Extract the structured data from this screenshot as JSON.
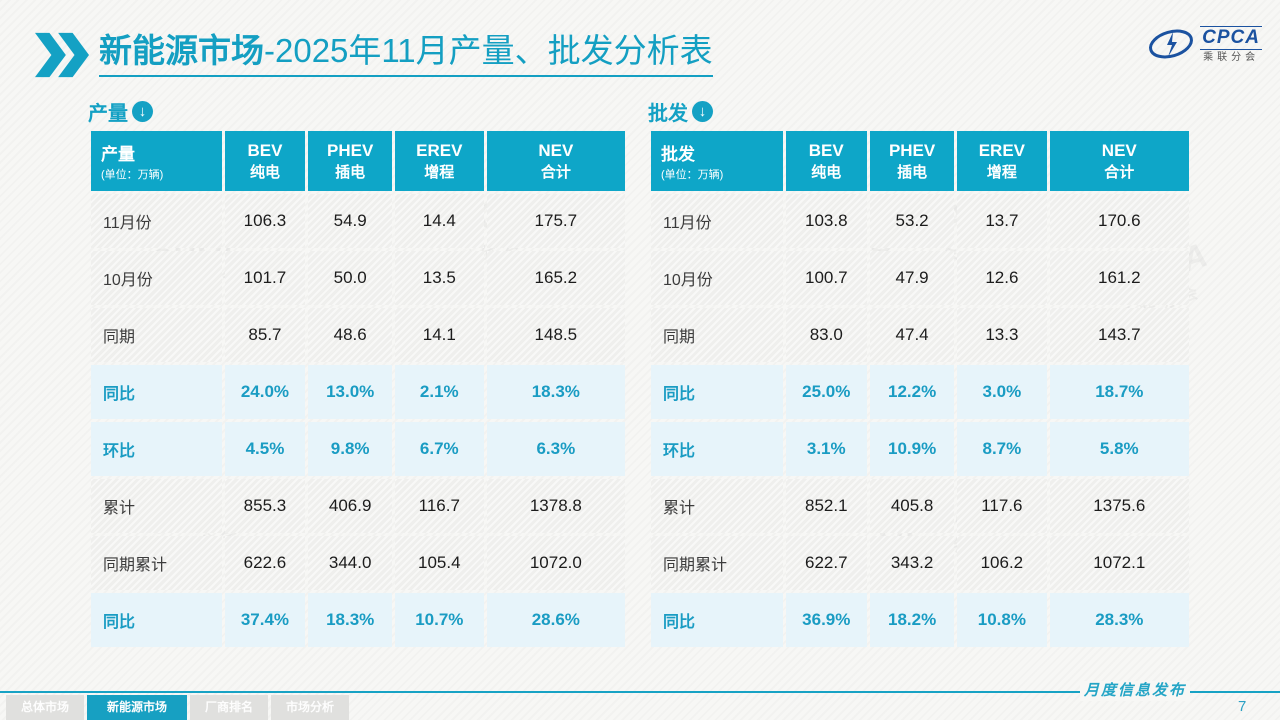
{
  "header": {
    "title_bold": "新能源市场",
    "title_rest": "-2025年11月产量、批发分析表",
    "logo": {
      "brand": "CPCA",
      "brand_sub": "乘联分会"
    }
  },
  "tables": [
    {
      "id": "production",
      "section_label": "产量",
      "corner_label": "产量",
      "corner_unit": "(单位：万辆)",
      "columns": [
        {
          "en": "BEV",
          "cn": "纯电"
        },
        {
          "en": "PHEV",
          "cn": "插电"
        },
        {
          "en": "EREV",
          "cn": "增程"
        },
        {
          "en": "NEV",
          "cn": "合计"
        }
      ],
      "rows": [
        {
          "label": "11月份",
          "type": "data",
          "values": [
            "106.3",
            "54.9",
            "14.4",
            "175.7"
          ]
        },
        {
          "label": "10月份",
          "type": "data",
          "values": [
            "101.7",
            "50.0",
            "13.5",
            "165.2"
          ]
        },
        {
          "label": "同期",
          "type": "data",
          "values": [
            "85.7",
            "48.6",
            "14.1",
            "148.5"
          ]
        },
        {
          "label": "同比",
          "type": "pct",
          "values": [
            "24.0%",
            "13.0%",
            "2.1%",
            "18.3%"
          ]
        },
        {
          "label": "环比",
          "type": "pct",
          "values": [
            "4.5%",
            "9.8%",
            "6.7%",
            "6.3%"
          ]
        },
        {
          "label": "累计",
          "type": "data",
          "values": [
            "855.3",
            "406.9",
            "116.7",
            "1378.8"
          ]
        },
        {
          "label": "同期累计",
          "type": "data",
          "values": [
            "622.6",
            "344.0",
            "105.4",
            "1072.0"
          ]
        },
        {
          "label": "同比",
          "type": "pct",
          "values": [
            "37.4%",
            "18.3%",
            "10.7%",
            "28.6%"
          ]
        }
      ]
    },
    {
      "id": "wholesale",
      "section_label": "批发",
      "corner_label": "批发",
      "corner_unit": "(单位：万辆)",
      "columns": [
        {
          "en": "BEV",
          "cn": "纯电"
        },
        {
          "en": "PHEV",
          "cn": "插电"
        },
        {
          "en": "EREV",
          "cn": "增程"
        },
        {
          "en": "NEV",
          "cn": "合计"
        }
      ],
      "rows": [
        {
          "label": "11月份",
          "type": "data",
          "values": [
            "103.8",
            "53.2",
            "13.7",
            "170.6"
          ]
        },
        {
          "label": "10月份",
          "type": "data",
          "values": [
            "100.7",
            "47.9",
            "12.6",
            "161.2"
          ]
        },
        {
          "label": "同期",
          "type": "data",
          "values": [
            "83.0",
            "47.4",
            "13.3",
            "143.7"
          ]
        },
        {
          "label": "同比",
          "type": "pct",
          "values": [
            "25.0%",
            "12.2%",
            "3.0%",
            "18.7%"
          ]
        },
        {
          "label": "环比",
          "type": "pct",
          "values": [
            "3.1%",
            "10.9%",
            "8.7%",
            "5.8%"
          ]
        },
        {
          "label": "累计",
          "type": "data",
          "values": [
            "852.1",
            "405.8",
            "117.6",
            "1375.6"
          ]
        },
        {
          "label": "同期累计",
          "type": "data",
          "values": [
            "622.7",
            "343.2",
            "106.2",
            "1072.1"
          ]
        },
        {
          "label": "同比",
          "type": "pct",
          "values": [
            "36.9%",
            "18.2%",
            "10.8%",
            "28.3%"
          ]
        }
      ]
    }
  ],
  "footer": {
    "publish_label": "月度信息发布",
    "page_number": "7",
    "tabs": [
      {
        "label": "总体市场",
        "active": false
      },
      {
        "label": "新能源市场",
        "active": true
      },
      {
        "label": "厂商排名",
        "active": false
      },
      {
        "label": "市场分析",
        "active": false
      }
    ]
  },
  "watermark": {
    "text": "CPCA",
    "subtext": "乘联分会"
  },
  "colors": {
    "teal_header": "#0ea6c8",
    "teal_title": "#149fc2",
    "pct_row_bg": "#e7f4fa",
    "data_row_bg": "#efefed",
    "logo_blue": "#1b52a0"
  }
}
